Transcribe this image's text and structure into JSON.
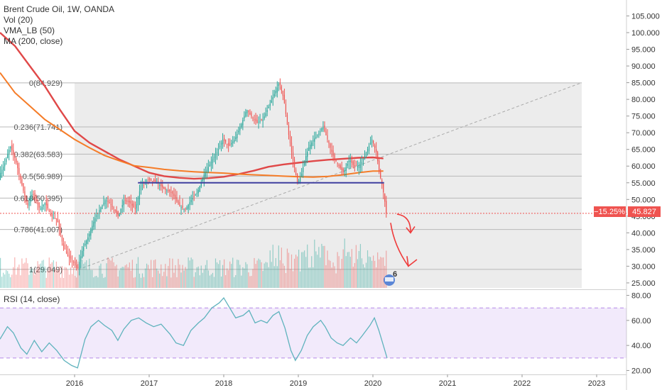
{
  "chart_data": {
    "type": "candlestick",
    "legend": [
      {
        "label": "Brent Crude Oil, 1W, OANDA"
      },
      {
        "label": "Vol (20)"
      },
      {
        "label": "VMA_LB (50)"
      },
      {
        "label": "MA (200, close)"
      }
    ],
    "price_axis": {
      "ticks": [
        "105.000",
        "100.000",
        "95.000",
        "90.000",
        "85.000",
        "80.000",
        "75.000",
        "70.000",
        "65.000",
        "60.000",
        "55.000",
        "50.000",
        "45.000",
        "40.000",
        "35.000",
        "30.000",
        "25.000"
      ],
      "range": [
        23.5,
        108.5
      ]
    },
    "time_axis": {
      "ticks": [
        "2016",
        "2017",
        "2018",
        "2019",
        "2020",
        "2021",
        "2022",
        "2023"
      ],
      "range": [
        2015.0,
        2023.4
      ]
    },
    "fib_levels": [
      {
        "label": "0(84.929)",
        "value": 84.929
      },
      {
        "label": "0.236(71.741)",
        "value": 71.741
      },
      {
        "label": "0.382(63.583)",
        "value": 63.583
      },
      {
        "label": "0.5(56.989)",
        "value": 56.989
      },
      {
        "label": "0.618(50.395)",
        "value": 50.395
      },
      {
        "label": "0.786(41.007)",
        "value": 41.007
      },
      {
        "label": "1(29.049)",
        "value": 29.049
      }
    ],
    "fib_range_time": [
      2016.0,
      2022.8
    ],
    "support_line": {
      "value": 55.0,
      "time": [
        2016.85,
        2020.15
      ],
      "color": "#3f3f9f"
    },
    "trendline": {
      "from": [
        2016.05,
        29.0
      ],
      "to": [
        2022.8,
        85.0
      ]
    },
    "last_price": {
      "value": 45.827,
      "label": "45.827",
      "change_label": "−15.25%",
      "color": "#ef5350"
    },
    "price_path": [
      [
        2015.0,
        57
      ],
      [
        2015.08,
        61
      ],
      [
        2015.15,
        66
      ],
      [
        2015.22,
        62
      ],
      [
        2015.3,
        55
      ],
      [
        2015.38,
        48
      ],
      [
        2015.45,
        52
      ],
      [
        2015.55,
        47
      ],
      [
        2015.62,
        49
      ],
      [
        2015.7,
        45
      ],
      [
        2015.78,
        44
      ],
      [
        2015.85,
        37
      ],
      [
        2015.92,
        33
      ],
      [
        2016.0,
        31
      ],
      [
        2016.05,
        29
      ],
      [
        2016.12,
        35
      ],
      [
        2016.2,
        39
      ],
      [
        2016.28,
        44
      ],
      [
        2016.35,
        47
      ],
      [
        2016.43,
        50
      ],
      [
        2016.52,
        48
      ],
      [
        2016.6,
        45
      ],
      [
        2016.68,
        50
      ],
      [
        2016.76,
        49
      ],
      [
        2016.83,
        47
      ],
      [
        2016.9,
        54
      ],
      [
        2017.0,
        56
      ],
      [
        2017.12,
        55
      ],
      [
        2017.22,
        53
      ],
      [
        2017.32,
        52
      ],
      [
        2017.42,
        48
      ],
      [
        2017.5,
        47
      ],
      [
        2017.58,
        50
      ],
      [
        2017.66,
        52
      ],
      [
        2017.74,
        57
      ],
      [
        2017.84,
        61
      ],
      [
        2017.94,
        65
      ],
      [
        2018.0,
        68
      ],
      [
        2018.08,
        66
      ],
      [
        2018.16,
        68
      ],
      [
        2018.24,
        72
      ],
      [
        2018.32,
        77
      ],
      [
        2018.38,
        75
      ],
      [
        2018.46,
        73
      ],
      [
        2018.54,
        74
      ],
      [
        2018.62,
        78
      ],
      [
        2018.7,
        82
      ],
      [
        2018.76,
        85
      ],
      [
        2018.82,
        80
      ],
      [
        2018.88,
        70
      ],
      [
        2018.94,
        62
      ],
      [
        2019.0,
        55
      ],
      [
        2019.05,
        57
      ],
      [
        2019.1,
        62
      ],
      [
        2019.16,
        66
      ],
      [
        2019.22,
        68
      ],
      [
        2019.3,
        70
      ],
      [
        2019.34,
        72
      ],
      [
        2019.42,
        67
      ],
      [
        2019.48,
        63
      ],
      [
        2019.56,
        60
      ],
      [
        2019.62,
        58
      ],
      [
        2019.7,
        62
      ],
      [
        2019.76,
        60
      ],
      [
        2019.84,
        60
      ],
      [
        2019.92,
        64
      ],
      [
        2020.0,
        68
      ],
      [
        2020.06,
        64
      ],
      [
        2020.1,
        58
      ],
      [
        2020.14,
        54
      ],
      [
        2020.17,
        50
      ],
      [
        2020.19,
        45.827
      ]
    ],
    "ma200_path": [
      [
        2015.0,
        100
      ],
      [
        2015.2,
        96
      ],
      [
        2015.4,
        90
      ],
      [
        2015.6,
        84
      ],
      [
        2015.8,
        77
      ],
      [
        2016.0,
        70.5
      ],
      [
        2016.2,
        67
      ],
      [
        2016.4,
        64.5
      ],
      [
        2016.6,
        62
      ],
      [
        2016.8,
        60
      ],
      [
        2017.0,
        58
      ],
      [
        2017.2,
        57
      ],
      [
        2017.4,
        56.5
      ],
      [
        2017.6,
        56.2
      ],
      [
        2017.8,
        56.4
      ],
      [
        2018.0,
        56.8
      ],
      [
        2018.2,
        57.6
      ],
      [
        2018.4,
        58.6
      ],
      [
        2018.6,
        59.8
      ],
      [
        2018.8,
        60.5
      ],
      [
        2019.0,
        61.0
      ],
      [
        2019.2,
        61.5
      ],
      [
        2019.4,
        61.9
      ],
      [
        2019.6,
        62.2
      ],
      [
        2019.8,
        62.5
      ],
      [
        2020.0,
        62.6
      ],
      [
        2020.14,
        62.3
      ]
    ],
    "ma_orange_path": [
      [
        2015.0,
        88
      ],
      [
        2015.2,
        82
      ],
      [
        2015.4,
        78
      ],
      [
        2015.6,
        74
      ],
      [
        2015.8,
        71
      ],
      [
        2016.0,
        68
      ],
      [
        2016.2,
        65.5
      ],
      [
        2016.4,
        63.2
      ],
      [
        2016.6,
        61.6
      ],
      [
        2016.8,
        60.1
      ],
      [
        2017.0,
        59.6
      ],
      [
        2017.2,
        59.0
      ],
      [
        2017.4,
        58.6
      ],
      [
        2017.6,
        58.3
      ],
      [
        2017.8,
        58.1
      ],
      [
        2018.0,
        57.9
      ],
      [
        2018.2,
        57.6
      ],
      [
        2018.4,
        57.4
      ],
      [
        2018.6,
        57.2
      ],
      [
        2018.8,
        57.0
      ],
      [
        2019.0,
        56.8
      ],
      [
        2019.2,
        56.7
      ],
      [
        2019.4,
        56.9
      ],
      [
        2019.6,
        57.4
      ],
      [
        2019.8,
        58.0
      ],
      [
        2020.0,
        58.5
      ],
      [
        2020.14,
        58.5
      ]
    ],
    "rsi": {
      "label": "RSI (14, close)",
      "ticks": [
        "80.00",
        "60.00",
        "40.00",
        "20.00"
      ],
      "range": [
        18,
        82
      ],
      "band": [
        30,
        70
      ],
      "path": [
        [
          2015.0,
          45
        ],
        [
          2015.1,
          55
        ],
        [
          2015.18,
          50
        ],
        [
          2015.28,
          38
        ],
        [
          2015.36,
          33
        ],
        [
          2015.46,
          44
        ],
        [
          2015.56,
          35
        ],
        [
          2015.66,
          42
        ],
        [
          2015.76,
          36
        ],
        [
          2015.86,
          28
        ],
        [
          2015.96,
          24
        ],
        [
          2016.04,
          22
        ],
        [
          2016.14,
          45
        ],
        [
          2016.22,
          55
        ],
        [
          2016.32,
          60
        ],
        [
          2016.4,
          56
        ],
        [
          2016.5,
          52
        ],
        [
          2016.58,
          44
        ],
        [
          2016.66,
          53
        ],
        [
          2016.76,
          60
        ],
        [
          2016.86,
          62
        ],
        [
          2016.96,
          58
        ],
        [
          2017.06,
          55
        ],
        [
          2017.16,
          57
        ],
        [
          2017.28,
          49
        ],
        [
          2017.36,
          42
        ],
        [
          2017.46,
          40
        ],
        [
          2017.56,
          52
        ],
        [
          2017.66,
          58
        ],
        [
          2017.74,
          62
        ],
        [
          2017.84,
          70
        ],
        [
          2017.94,
          74
        ],
        [
          2018.0,
          78
        ],
        [
          2018.08,
          70
        ],
        [
          2018.16,
          62
        ],
        [
          2018.26,
          64
        ],
        [
          2018.34,
          68
        ],
        [
          2018.42,
          58
        ],
        [
          2018.5,
          60
        ],
        [
          2018.58,
          58
        ],
        [
          2018.66,
          64
        ],
        [
          2018.74,
          67
        ],
        [
          2018.82,
          54
        ],
        [
          2018.9,
          36
        ],
        [
          2018.96,
          28
        ],
        [
          2019.04,
          36
        ],
        [
          2019.12,
          48
        ],
        [
          2019.2,
          55
        ],
        [
          2019.3,
          60
        ],
        [
          2019.36,
          55
        ],
        [
          2019.44,
          46
        ],
        [
          2019.52,
          42
        ],
        [
          2019.6,
          40
        ],
        [
          2019.7,
          46
        ],
        [
          2019.78,
          42
        ],
        [
          2019.86,
          48
        ],
        [
          2019.96,
          56
        ],
        [
          2020.02,
          62
        ],
        [
          2020.08,
          52
        ],
        [
          2020.12,
          44
        ],
        [
          2020.16,
          36
        ],
        [
          2020.19,
          30
        ]
      ]
    },
    "badge": {
      "label": "6"
    }
  },
  "colors": {
    "up": "#26a69a",
    "down": "#ef5350",
    "ma_red": "#e04848",
    "ma_orange": "#f57c28",
    "rsi_line": "#5fb3bd",
    "rsi_band": "#b58ae8",
    "fib_zone": "#ececec",
    "fib_line": "#b8b8b8",
    "support": "#3f3f9f",
    "arrow": "#ef3b3b",
    "badge": "#5b86d6"
  }
}
